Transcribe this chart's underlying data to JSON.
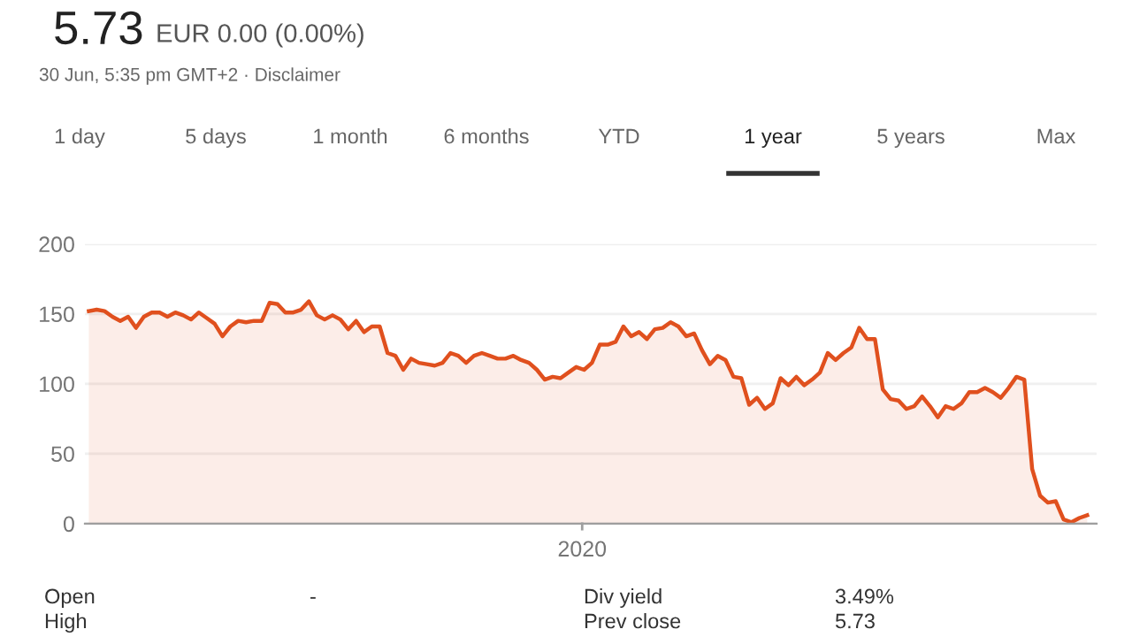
{
  "chart_data": {
    "type": "area",
    "title": "5.73",
    "subtitle": "EUR 0.00 (0.00%)",
    "annotations": [
      "30 Jun, 5:35 pm GMT+2 · Disclaimer",
      "1 day",
      "5 days",
      "1 month",
      "6 months",
      "YTD",
      "1 year",
      "5 years",
      "Max",
      "Open",
      "-",
      "Div yield",
      "3.49%",
      "High",
      "Prev close",
      "5.73",
      "2020"
    ],
    "categories": [
      null,
      null,
      null,
      null,
      null,
      null,
      null,
      null,
      null,
      null,
      null,
      null,
      null,
      null,
      null,
      null,
      null,
      null,
      null,
      null,
      null,
      null,
      null,
      null,
      null,
      null,
      null,
      null,
      null,
      null,
      null,
      null,
      null,
      null,
      null,
      null,
      null,
      null,
      null,
      null,
      null,
      null,
      null,
      null,
      null,
      null,
      null,
      null,
      null,
      null,
      null,
      null,
      null,
      null,
      null,
      null,
      null,
      null,
      null,
      null,
      null,
      null,
      null,
      null,
      null,
      null,
      null,
      null,
      null,
      null,
      null,
      null,
      null,
      null,
      null,
      null,
      null,
      null,
      null,
      null,
      null,
      null,
      null,
      null,
      null,
      null,
      null,
      null,
      null,
      null,
      null,
      null,
      null,
      null,
      null,
      null,
      null,
      null,
      null,
      null,
      null,
      null,
      null,
      null,
      null,
      null,
      null,
      null,
      null,
      null,
      null,
      null,
      null,
      null,
      null,
      null,
      null,
      null,
      null,
      null,
      null,
      null,
      null,
      null,
      null,
      null,
      null,
      null
    ],
    "series": [
      {
        "color": "#e0501e",
        "values": [
          152,
          153,
          152,
          148,
          145,
          148,
          140,
          148,
          151,
          151,
          148,
          151,
          149,
          146,
          151,
          147,
          143,
          134,
          141,
          145,
          144,
          145,
          145,
          158,
          157,
          151,
          151,
          153,
          159,
          149,
          146,
          149,
          146,
          139,
          145,
          137,
          141,
          141,
          122,
          120,
          110,
          118,
          115,
          114,
          113,
          115,
          122,
          120,
          115,
          120,
          122,
          120,
          118,
          118,
          120,
          117,
          115,
          110,
          103,
          105,
          104,
          108,
          112,
          110,
          115,
          128,
          128,
          130,
          141,
          134,
          137,
          132,
          139,
          140,
          144,
          141,
          134,
          136,
          124,
          114,
          120,
          117,
          105,
          104,
          85,
          90,
          82,
          86,
          104,
          99,
          105,
          99,
          103,
          108,
          122,
          117,
          122,
          126,
          140,
          132,
          132,
          96,
          89,
          88,
          82,
          84,
          91,
          84,
          76,
          84,
          82,
          86,
          94,
          94,
          97,
          94,
          90,
          97,
          105,
          103,
          39,
          20,
          15,
          16,
          3,
          1,
          4,
          6
        ]
      }
    ],
    "ylim": [
      0,
      200
    ],
    "yticks": [
      0,
      50,
      100,
      150,
      200
    ],
    "grid": "y"
  }
}
